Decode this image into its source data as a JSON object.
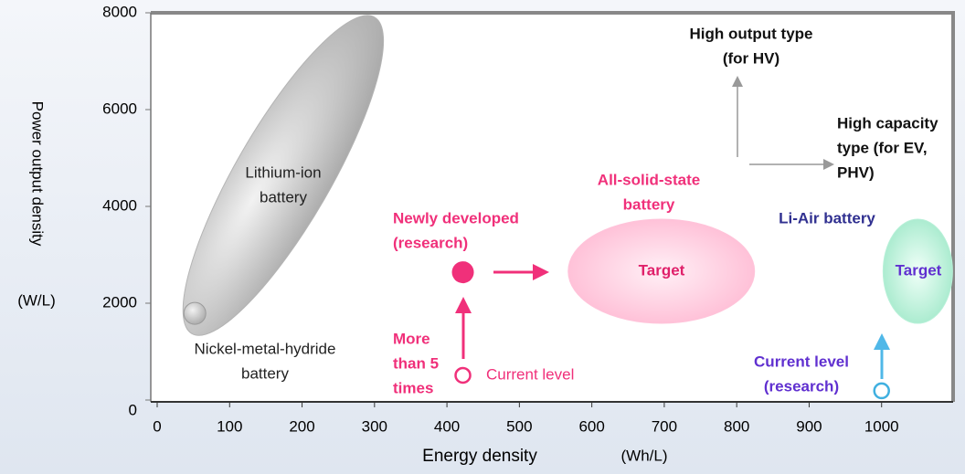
{
  "chart_data": {
    "type": "scatter",
    "x_label": "Energy density",
    "x_unit": "(Wh/L)",
    "y_label": "Power output density",
    "y_unit": "(W/L)",
    "xlim": [
      0,
      1100
    ],
    "ylim": [
      0,
      8000
    ],
    "xticks": [
      0,
      100,
      200,
      300,
      400,
      500,
      600,
      700,
      800,
      900,
      1000
    ],
    "yticks": [
      0,
      2000,
      4000,
      6000,
      8000
    ],
    "regions": [
      {
        "x": 174,
        "y": 4640,
        "color": "#b4b4b4"
      },
      {
        "x": 696,
        "y": 2660,
        "color": "#ffc4da"
      },
      {
        "x": 1050,
        "y": 2660,
        "color": "#b8f0d8"
      }
    ],
    "points": [
      {
        "x": 52,
        "y": 1790,
        "color": "#9a9a9a"
      },
      {
        "x": 422,
        "y": 2640,
        "color": "#f0307a"
      },
      {
        "x": 422,
        "y": 510,
        "color": "#f0307a"
      },
      {
        "x": 1000,
        "y": 190,
        "color": "#40b0e0"
      }
    ],
    "annotations": [
      {
        "lines": [
          "Lithium-ion",
          "battery"
        ]
      },
      {
        "lines": [
          "Nickel-metal-hydride",
          "battery"
        ]
      },
      {
        "lines": [
          "Newly developed",
          "(research)"
        ]
      },
      {
        "lines": [
          "All-solid-state",
          "battery"
        ]
      },
      {
        "lines": [
          "Target"
        ]
      },
      {
        "lines": [
          "Li-Air battery"
        ]
      },
      {
        "lines": [
          "Target"
        ]
      },
      {
        "lines": [
          "High output type",
          "(for HV)"
        ]
      },
      {
        "lines": [
          "High capacity",
          "type (for EV,",
          "PHV)"
        ]
      },
      {
        "lines": [
          "More",
          "than 5",
          "times"
        ]
      },
      {
        "lines": [
          "Current level"
        ]
      },
      {
        "lines": [
          "Current level",
          "(research)"
        ]
      }
    ]
  }
}
